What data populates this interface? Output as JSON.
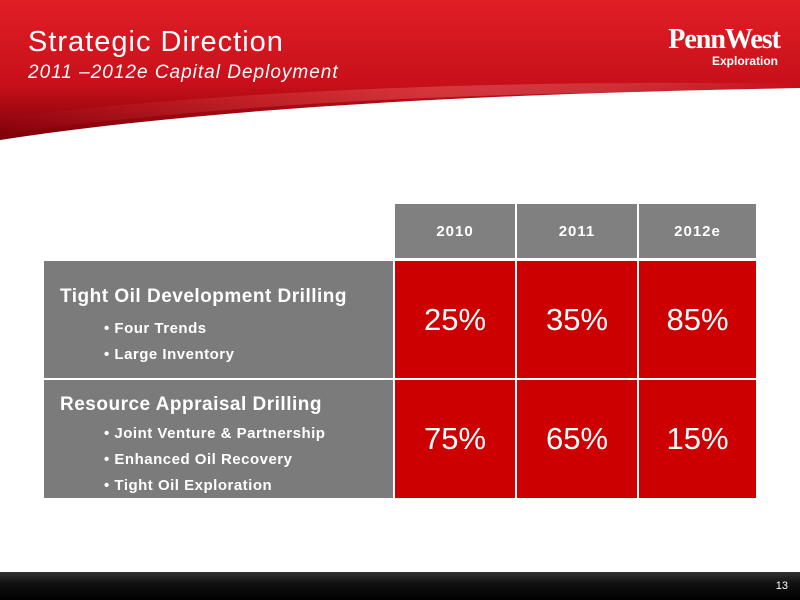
{
  "header": {
    "title": "Strategic Direction",
    "subtitle": "2011 –2012e Capital Deployment",
    "logo": {
      "main": "PennWest",
      "sub": "Exploration"
    }
  },
  "colors": {
    "accent_red": "#cc0000",
    "header_red": "#d0101a",
    "cell_gray": "#7b7b7b"
  },
  "table": {
    "years": [
      "2010",
      "2011",
      "2012e"
    ],
    "rows": [
      {
        "label": "Tight Oil Development Drilling",
        "bullets": [
          "Four Trends",
          "Large Inventory"
        ],
        "values": [
          "25%",
          "35%",
          "85%"
        ]
      },
      {
        "label": "Resource Appraisal Drilling",
        "bullets": [
          "Joint Venture & Partnership",
          "Enhanced Oil Recovery",
          "Tight Oil Exploration"
        ],
        "values": [
          "75%",
          "65%",
          "15%"
        ]
      }
    ]
  },
  "footer": {
    "page_number": "13"
  }
}
